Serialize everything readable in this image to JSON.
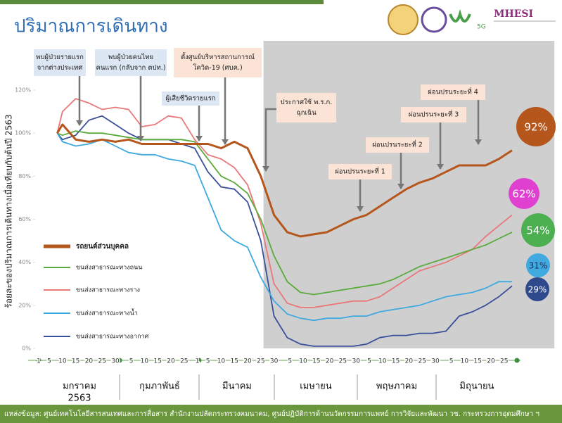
{
  "header": {
    "title": "ปริมาณการเดินทาง",
    "logos": [
      "5G",
      "MHESI"
    ]
  },
  "chart_data": {
    "type": "line",
    "ylabel": "ร้อยละของปริมาณการเดินทางเมื่อเทียบกับต้นปี 2563",
    "x": [
      8,
      10,
      15,
      20,
      25,
      30,
      35,
      40,
      45,
      50,
      55,
      60,
      65,
      70,
      75,
      80,
      85,
      90,
      95,
      100,
      105,
      110,
      115,
      120,
      125,
      130,
      135,
      140,
      145,
      150,
      155,
      160,
      165,
      170,
      175,
      180
    ],
    "xlim": [
      1,
      196
    ],
    "xticks": [
      1,
      5,
      10,
      15,
      20,
      25,
      30,
      {
        "value": 36,
        "label": "5"
      },
      {
        "value": 41,
        "label": "10"
      },
      {
        "value": 46,
        "label": "15"
      },
      {
        "value": 51,
        "label": "20"
      },
      {
        "value": 56,
        "label": "25"
      },
      {
        "value": 61,
        "label": "1"
      },
      {
        "value": 65,
        "label": "5"
      },
      {
        "value": 70,
        "label": "10"
      },
      {
        "value": 75,
        "label": "15"
      },
      {
        "value": 80,
        "label": "20"
      },
      {
        "value": 85,
        "label": "25"
      },
      {
        "value": 90,
        "label": "30"
      },
      {
        "value": 96,
        "label": "5"
      },
      {
        "value": 101,
        "label": "10"
      },
      {
        "value": 106,
        "label": "15"
      },
      {
        "value": 111,
        "label": "20"
      },
      {
        "value": 116,
        "label": "25"
      },
      {
        "value": 121,
        "label": "30"
      },
      {
        "value": 126,
        "label": "5"
      },
      {
        "value": 131,
        "label": "10"
      },
      {
        "value": 136,
        "label": "15"
      },
      {
        "value": 141,
        "label": "20"
      },
      {
        "value": 146,
        "label": "25"
      },
      {
        "value": 151,
        "label": "30"
      },
      {
        "value": 157,
        "label": "5"
      },
      {
        "value": 162,
        "label": "10"
      },
      {
        "value": 167,
        "label": "15"
      },
      {
        "value": 172,
        "label": "20"
      },
      {
        "value": 177,
        "label": "25"
      }
    ],
    "months": [
      [
        "มกราคม",
        "2563"
      ],
      [
        "กุมภาพันธ์"
      ],
      [
        "มีนาคม"
      ],
      [
        "เมษายน"
      ],
      [
        "พฤษภาคม"
      ],
      [
        "มิถุนายน"
      ]
    ],
    "ylim": [
      0,
      120
    ],
    "yticks": [
      {
        "value": 0,
        "label": "0%"
      },
      {
        "value": 20,
        "label": "20%"
      },
      {
        "value": 40,
        "label": "40%"
      },
      {
        "value": 60,
        "label": "60%"
      },
      {
        "value": 80,
        "label": "80%"
      },
      {
        "value": 100,
        "label": "100%"
      },
      {
        "value": 120,
        "label": "120%"
      }
    ],
    "grid": false,
    "shade_xlim": [
      86,
      196
    ],
    "legend": "left",
    "series": [
      {
        "name": "รถยนต์ส่วนบุคคล",
        "color": "#b5561c",
        "end_label": "92%",
        "end_label_color": "#b5561c",
        "values": [
          100,
          104,
          97,
          96,
          97,
          96,
          97,
          95,
          95,
          95,
          95,
          95,
          95,
          93,
          96,
          93,
          80,
          62,
          54,
          52,
          53,
          54,
          57,
          60,
          62,
          66,
          70,
          74,
          77,
          79,
          82,
          85,
          85,
          85,
          88,
          92
        ]
      },
      {
        "name": "ขนส่งสาธารณะทางถนน",
        "color": "#5aaa3c",
        "end_label": "54%",
        "end_label_color": "#4caf50",
        "values": [
          100,
          99,
          101,
          100,
          100,
          99,
          98,
          97,
          97,
          97,
          97,
          96,
          88,
          80,
          77,
          72,
          60,
          43,
          31,
          26,
          25,
          26,
          27,
          28,
          29,
          30,
          32,
          35,
          38,
          40,
          42,
          44,
          46,
          48,
          51,
          54
        ]
      },
      {
        "name": "ขนส่งสาธารณะทางราง",
        "color": "#e8787a",
        "end_label": "62%",
        "end_label_color": "#e040d0",
        "values": [
          100,
          110,
          116,
          114,
          111,
          112,
          111,
          103,
          104,
          108,
          107,
          97,
          90,
          88,
          84,
          76,
          58,
          30,
          21,
          19,
          19,
          20,
          21,
          22,
          22,
          24,
          28,
          32,
          36,
          38,
          40,
          43,
          46,
          52,
          57,
          62
        ]
      },
      {
        "name": "ขนส่งสาธารณะทางน้ำ",
        "color": "#3fa9e0",
        "end_label": "31%",
        "end_label_color": "#3fa9e0",
        "values": [
          100,
          96,
          94,
          95,
          97,
          94,
          91,
          90,
          90,
          88,
          87,
          85,
          70,
          55,
          50,
          47,
          33,
          22,
          16,
          14,
          13,
          14,
          14,
          15,
          15,
          17,
          18,
          19,
          20,
          22,
          24,
          25,
          26,
          28,
          31,
          31
        ]
      },
      {
        "name": "ขนส่งสาธารณะทางอากาศ",
        "color": "#3a4f9a",
        "end_label": "29%",
        "end_label_color": "#2f4a8c",
        "values": [
          100,
          97,
          99,
          106,
          108,
          104,
          100,
          97,
          97,
          97,
          95,
          93,
          82,
          75,
          74,
          68,
          50,
          15,
          5,
          2,
          1,
          1,
          1,
          1,
          2,
          5,
          6,
          6,
          7,
          7,
          8,
          15,
          17,
          20,
          24,
          29
        ]
      }
    ],
    "annotations": [
      {
        "lines": [
          "พบผู้ป่วยรายแรก",
          "จากต่างประเทศ"
        ],
        "color": "#dde7f3"
      },
      {
        "lines": [
          "พบผู้ป่วยคนไทย",
          "คนแรก (กลับจาก ตปท.)"
        ],
        "color": "#dde7f3"
      },
      {
        "lines": [
          "ตั้งศูนย์บริหารสถานการณ์",
          "โควิด-19 (ศบค.)"
        ],
        "color": "#fbe3d6"
      },
      {
        "lines": [
          "ผู้เสียชีวิตรายแรก"
        ],
        "color": "#dde7f3"
      },
      {
        "lines": [
          "ประกาศใช้ พ.ร.ก.",
          "ฉุกเฉิน"
        ],
        "color": "#fbe3d6"
      },
      {
        "lines": [
          "ผ่อนปรนระยะที่ 1"
        ],
        "color": "#fbe3d6"
      },
      {
        "lines": [
          "ผ่อนปรนระยะที่ 2"
        ],
        "color": "#fbe3d6"
      },
      {
        "lines": [
          "ผ่อนปรนระยะที่ 3"
        ],
        "color": "#fbe3d6"
      },
      {
        "lines": [
          "ผ่อนปรนระยะที่ 4"
        ],
        "color": "#fbe3d6"
      }
    ]
  },
  "footer": {
    "source": "แหล่งข้อมูล: ศูนย์เทคโนโลยีสารสนเทศและการสื่อสาร สำนักงานปลัดกระทรวงคมนาคม, ศูนย์ปฏิบัติการด้านนวัตกรรมการแพทย์ การวิจัยและพัฒนา วช. กระทรวงการอุดมศึกษา ฯ"
  }
}
